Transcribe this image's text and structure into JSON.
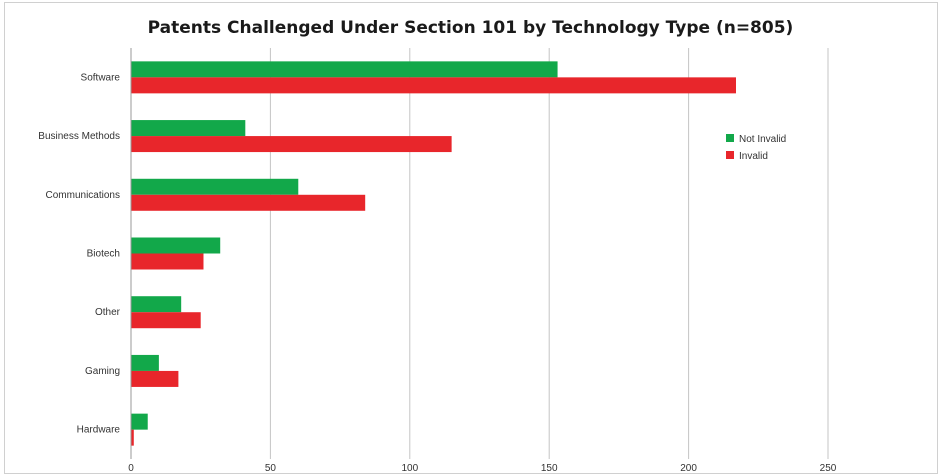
{
  "chart_data": {
    "type": "bar",
    "orientation": "horizontal",
    "title": "Patents Challenged Under Section 101 by Technology Type (n=805)",
    "categories": [
      "Software",
      "Business Methods",
      "Communications",
      "Biotech",
      "Other",
      "Gaming",
      "Hardware"
    ],
    "series": [
      {
        "name": "Not Invalid",
        "color": "#12a84a",
        "values": [
          153,
          41,
          60,
          32,
          18,
          10,
          6
        ]
      },
      {
        "name": "Invalid",
        "color": "#e8262b",
        "values": [
          217,
          115,
          84,
          26,
          25,
          17,
          1
        ]
      }
    ],
    "xlim": [
      0,
      250
    ],
    "xticks": [
      "0",
      "50",
      "100",
      "150",
      "200",
      "250"
    ],
    "grid": "vertical",
    "legend_position": "right"
  }
}
